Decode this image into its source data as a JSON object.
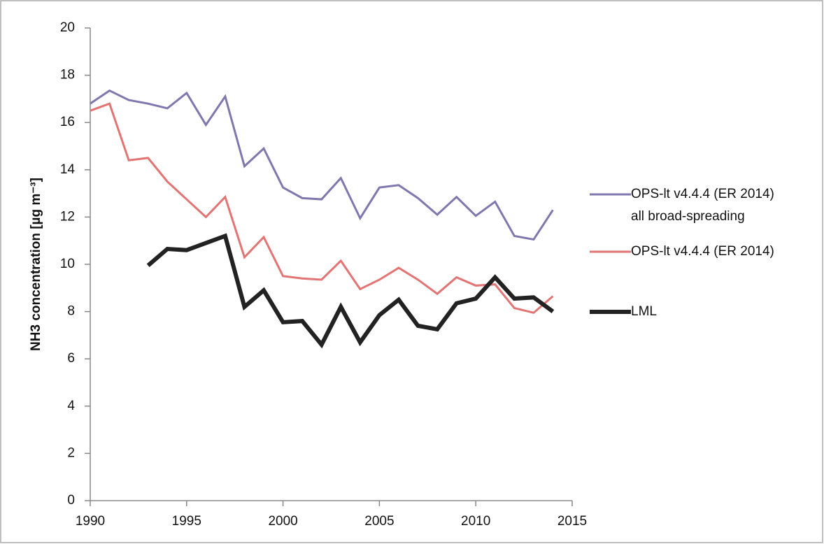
{
  "chart_data": {
    "type": "line",
    "ylabel": "NH3 concentration [µg m⁻³]",
    "x": [
      1990,
      1991,
      1992,
      1993,
      1994,
      1995,
      1996,
      1997,
      1998,
      1999,
      2000,
      2001,
      2002,
      2003,
      2004,
      2005,
      2006,
      2007,
      2008,
      2009,
      2010,
      2011,
      2012,
      2013,
      2014
    ],
    "series": [
      {
        "name": "OPS-lt v4.4.4 (ER 2014)\nall broad-spreading",
        "color": "#7f77ad",
        "width": 3,
        "values": [
          16.8,
          17.35,
          16.95,
          16.8,
          16.6,
          17.25,
          15.9,
          17.1,
          14.15,
          14.9,
          13.25,
          12.8,
          12.75,
          13.65,
          11.95,
          13.25,
          13.35,
          12.8,
          12.1,
          12.85,
          12.05,
          12.65,
          11.2,
          11.05,
          12.3
        ]
      },
      {
        "name": "OPS-lt v4.4.4 (ER 2014)",
        "color": "#e37474",
        "width": 3,
        "values": [
          16.5,
          16.8,
          14.4,
          14.5,
          13.5,
          12.75,
          12.0,
          12.85,
          10.3,
          11.15,
          9.5,
          9.4,
          9.35,
          10.15,
          8.95,
          9.35,
          9.85,
          9.35,
          8.75,
          9.45,
          9.1,
          9.15,
          8.15,
          7.95,
          8.65
        ]
      },
      {
        "name": "LML",
        "color": "#222222",
        "width": 6,
        "values": [
          null,
          null,
          null,
          9.95,
          10.65,
          10.6,
          10.9,
          11.2,
          8.2,
          8.9,
          7.55,
          7.6,
          6.6,
          8.2,
          6.7,
          7.85,
          8.5,
          7.4,
          7.25,
          8.35,
          8.55,
          9.45,
          8.55,
          8.6,
          8.0
        ]
      }
    ],
    "xlim": [
      1990,
      2015
    ],
    "xticks": [
      1990,
      1995,
      2000,
      2005,
      2010,
      2015
    ],
    "ylim": [
      0,
      20
    ],
    "yticks": [
      0,
      2,
      4,
      6,
      8,
      10,
      12,
      14,
      16,
      18,
      20
    ],
    "legend": "right"
  }
}
